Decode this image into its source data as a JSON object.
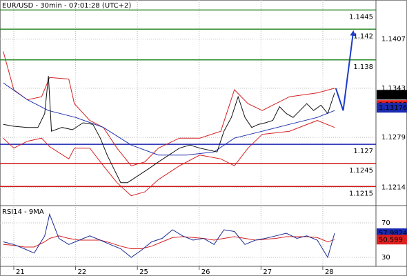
{
  "chart_data": [
    {
      "type": "line",
      "title": "EUR/USD - 30min - 07:01:28 (UTC+2)",
      "xlim": [
        -0.223,
        5.86
      ],
      "ylim": [
        1.1191,
        1.1458
      ],
      "yticks": [
        1.1407,
        1.1343,
        1.1279,
        1.1214
      ],
      "grid": true,
      "levels": [
        {
          "value": 1.1445,
          "color": "#2a8a2a"
        },
        {
          "value": 1.142,
          "color": "#2a8a2a"
        },
        {
          "value": 1.138,
          "color": "#2a8a2a"
        },
        {
          "value": 1.127,
          "color": "#1a22b0"
        },
        {
          "value": 1.1245,
          "color": "#d01818"
        },
        {
          "value": 1.1215,
          "color": "#d01818"
        }
      ],
      "series": [
        {
          "color": "#d42020",
          "x": [
            -0.17,
            0,
            0.22,
            0.45,
            0.58,
            0.89,
            0.98,
            1.23,
            1.45,
            1.67,
            1.9,
            2.12,
            2.34,
            2.68,
            3.01,
            3.35,
            3.57,
            3.79,
            4.02,
            4.46,
            4.91,
            5.19
          ],
          "values": [
            1.1391,
            1.1341,
            1.1328,
            1.1332,
            1.1357,
            1.1355,
            1.1323,
            1.1301,
            1.1292,
            1.1265,
            1.1242,
            1.1247,
            1.1265,
            1.1278,
            1.1278,
            1.1287,
            1.1341,
            1.1323,
            1.1314,
            1.1332,
            1.1337,
            1.1343
          ]
        },
        {
          "color": "#d42020",
          "x": [
            -0.17,
            0,
            0.22,
            0.45,
            0.58,
            0.89,
            0.98,
            1.23,
            1.45,
            1.67,
            1.9,
            2.12,
            2.34,
            2.68,
            3.01,
            3.35,
            3.57,
            3.79,
            4.02,
            4.46,
            4.91,
            5.19
          ],
          "values": [
            1.1278,
            1.1265,
            1.1274,
            1.1278,
            1.1267,
            1.1251,
            1.1265,
            1.1265,
            1.1242,
            1.122,
            1.1203,
            1.1208,
            1.1224,
            1.1242,
            1.1256,
            1.1251,
            1.1242,
            1.1265,
            1.1283,
            1.1287,
            1.1301,
            1.1292
          ]
        },
        {
          "color": "#2030b0",
          "x": [
            -0.17,
            0.22,
            0.56,
            1.0,
            1.45,
            1.9,
            2.34,
            2.79,
            3.24,
            3.57,
            4.02,
            4.46,
            4.91,
            5.19
          ],
          "values": [
            1.135,
            1.1328,
            1.1314,
            1.1305,
            1.1292,
            1.1269,
            1.1256,
            1.1256,
            1.126,
            1.1278,
            1.1287,
            1.1296,
            1.1305,
            1.1314
          ]
        },
        {
          "color": "#111111",
          "x": [
            -0.17,
            0,
            0.22,
            0.39,
            0.5,
            0.56,
            0.61,
            0.78,
            0.95,
            1.12,
            1.28,
            1.4,
            1.51,
            1.62,
            1.73,
            1.84,
            2.01,
            2.18,
            2.34,
            2.51,
            2.68,
            2.85,
            3.01,
            3.18,
            3.29,
            3.4,
            3.52,
            3.63,
            3.74,
            3.85,
            3.96,
            4.07,
            4.19,
            4.3,
            4.41,
            4.52,
            4.63,
            4.74,
            4.85,
            4.97,
            5.08,
            5.19
          ],
          "values": [
            1.1296,
            1.12935,
            1.1292,
            1.1292,
            1.131,
            1.1359,
            1.1287,
            1.1292,
            1.1289,
            1.1298,
            1.1296,
            1.1278,
            1.1256,
            1.1238,
            1.122,
            1.122,
            1.1229,
            1.1238,
            1.1247,
            1.1256,
            1.1265,
            1.1269,
            1.1265,
            1.1262,
            1.126,
            1.1287,
            1.1305,
            1.1332,
            1.1305,
            1.1292,
            1.1296,
            1.1298,
            1.1301,
            1.1319,
            1.131,
            1.1305,
            1.1314,
            1.1323,
            1.1314,
            1.1321,
            1.131,
            1.1337
          ]
        },
        {
          "color": "#1a3cc8",
          "arrow": true,
          "x": [
            5.21,
            5.33,
            5.49
          ],
          "values": [
            1.1343,
            1.1314,
            1.1415
          ]
        }
      ],
      "price_labels": [
        {
          "value": 1.13345,
          "color": "#000000",
          "text_color": "#ffffff"
        },
        {
          "value": 1.13212,
          "color": "#e02020",
          "text_color": "#400000"
        },
        {
          "value": 1.13176,
          "color": "#1a2ab0",
          "text_color": "#ffffff"
        }
      ]
    },
    {
      "type": "line",
      "title": "RSI14 - 9MA",
      "xlim": [
        -0.223,
        5.86
      ],
      "ylim": [
        20.4,
        88.4
      ],
      "xticks": [
        {
          "value": 0,
          "label": "21"
        },
        {
          "value": 1,
          "label": "22"
        },
        {
          "value": 2,
          "label": "25"
        },
        {
          "value": 3,
          "label": "26"
        },
        {
          "value": 4,
          "label": "27"
        },
        {
          "value": 5,
          "label": "28"
        }
      ],
      "yticks": [
        70,
        30
      ],
      "grid": true,
      "series": [
        {
          "color": "#d42020",
          "x": [
            -0.17,
            0,
            0.17,
            0.33,
            0.5,
            0.58,
            0.73,
            0.89,
            1.06,
            1.23,
            1.4,
            1.56,
            1.73,
            1.9,
            2.06,
            2.23,
            2.4,
            2.57,
            2.73,
            2.9,
            3.07,
            3.24,
            3.4,
            3.57,
            3.74,
            3.91,
            4.07,
            4.24,
            4.41,
            4.58,
            4.74,
            4.91,
            5.08,
            5.19
          ],
          "values": [
            45,
            44,
            42,
            42,
            48,
            52,
            55,
            52,
            50,
            50,
            50,
            47,
            43,
            40,
            40,
            43,
            48,
            53,
            54,
            53,
            52,
            50,
            52,
            54,
            52,
            50,
            51,
            52,
            54,
            54,
            54,
            53,
            48,
            50.599
          ]
        },
        {
          "color": "#1a2a90",
          "x": [
            -0.17,
            0,
            0.17,
            0.33,
            0.5,
            0.58,
            0.73,
            0.89,
            1.06,
            1.23,
            1.4,
            1.56,
            1.73,
            1.9,
            2.06,
            2.23,
            2.4,
            2.57,
            2.73,
            2.9,
            3.07,
            3.24,
            3.4,
            3.57,
            3.74,
            3.91,
            4.07,
            4.24,
            4.41,
            4.58,
            4.74,
            4.91,
            5.08,
            5.19
          ],
          "values": [
            48,
            45,
            40,
            35,
            55,
            80,
            52,
            45,
            50,
            55,
            50,
            45,
            40,
            30,
            38,
            48,
            52,
            62,
            55,
            50,
            52,
            45,
            62,
            60,
            45,
            50,
            52,
            55,
            58,
            52,
            55,
            50,
            30,
            57.9824
          ]
        }
      ],
      "price_labels": [
        {
          "value": 57.9824,
          "color": "#1a2ab0",
          "text_color": "#ffffff"
        },
        {
          "value": 50.599,
          "color": "#e02020",
          "text_color": "#400000"
        }
      ]
    }
  ]
}
